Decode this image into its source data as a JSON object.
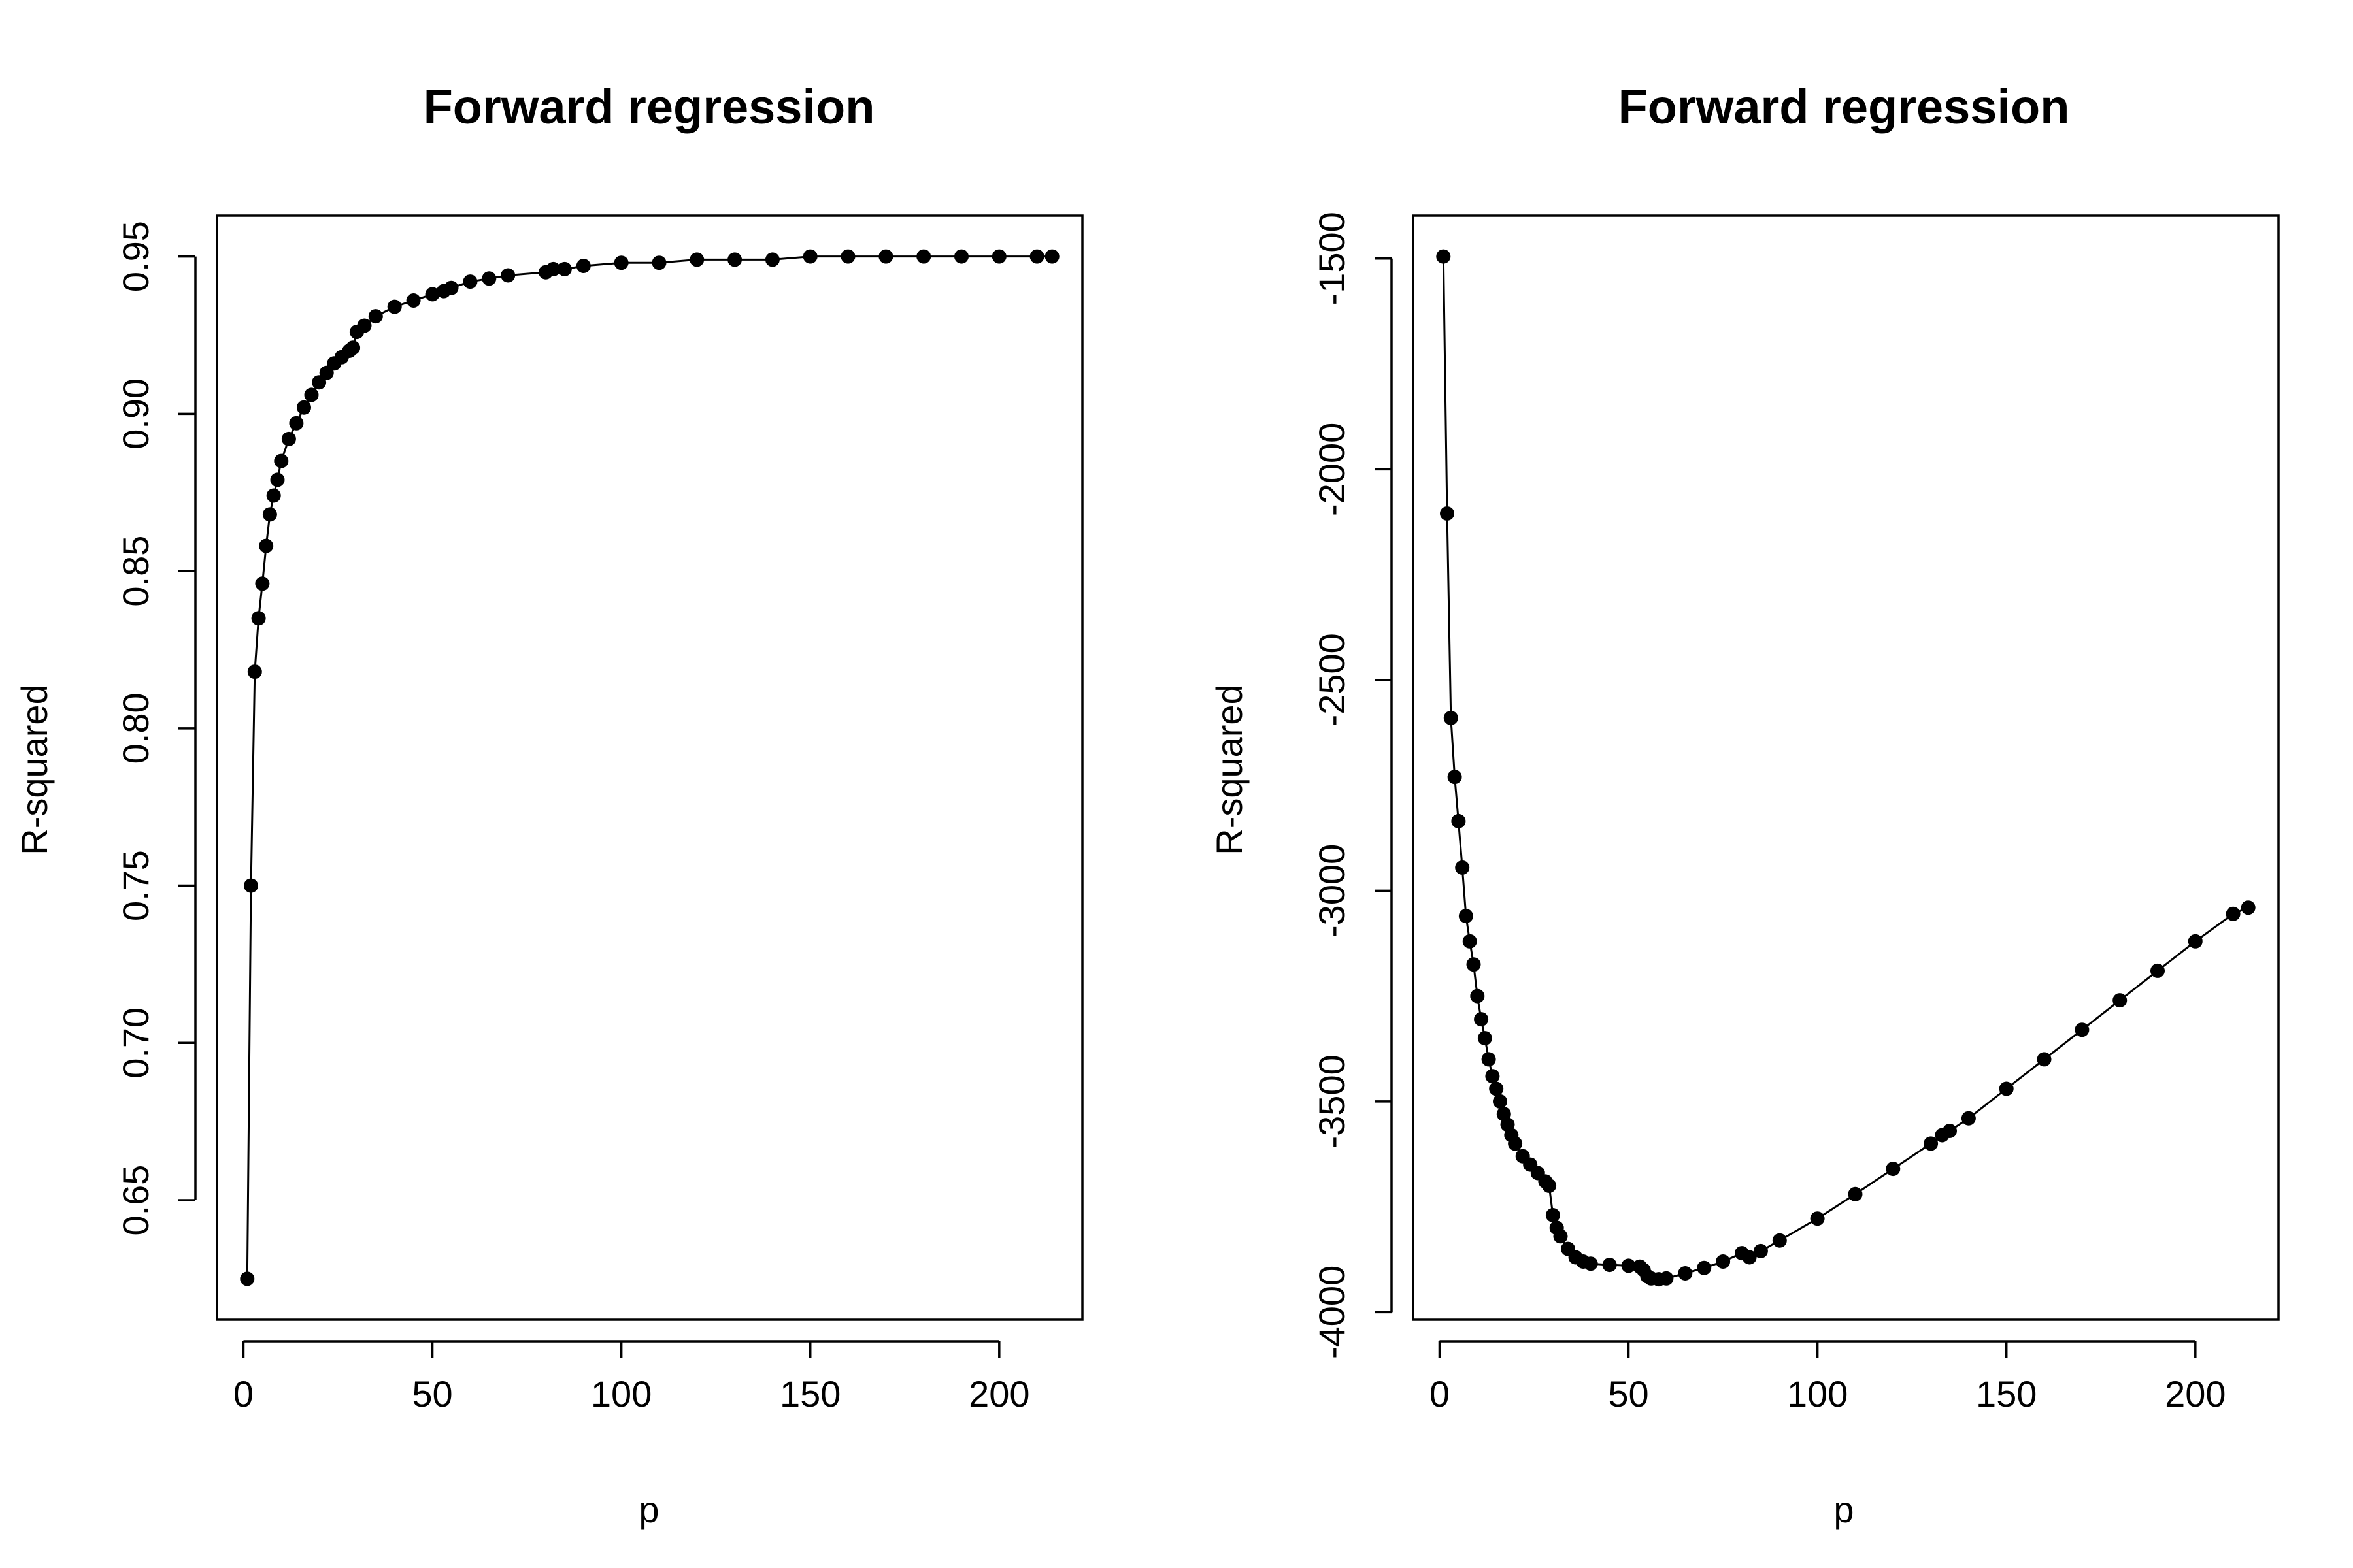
{
  "chart_data": [
    {
      "type": "scatter",
      "title": "Forward regression",
      "xlabel": "p",
      "ylabel": "R-squared",
      "xlim": [
        -7,
        222
      ],
      "ylim": [
        0.612,
        0.963
      ],
      "xticks": [
        0,
        50,
        100,
        150,
        200
      ],
      "yticks": [
        0.65,
        0.7,
        0.75,
        0.8,
        0.85,
        0.9,
        0.95
      ],
      "ytick_labels": [
        "0.65",
        "0.70",
        "0.75",
        "0.80",
        "0.85",
        "0.90",
        "0.95"
      ],
      "grid": false,
      "legend": "none",
      "connected_line": true,
      "series": [
        {
          "x": [
            1,
            2,
            3,
            4,
            5,
            6,
            7,
            8,
            9,
            10,
            12,
            14,
            16,
            18,
            20,
            22,
            24,
            26,
            28,
            29,
            30,
            32,
            35,
            40,
            45,
            50,
            53,
            55,
            60,
            65,
            70,
            80,
            82,
            85,
            90,
            100,
            110,
            120,
            130,
            140,
            150,
            160,
            170,
            180,
            190,
            200,
            210,
            214
          ],
          "y": [
            0.625,
            0.75,
            0.818,
            0.835,
            0.846,
            0.858,
            0.868,
            0.874,
            0.879,
            0.885,
            0.892,
            0.897,
            0.902,
            0.906,
            0.91,
            0.913,
            0.916,
            0.918,
            0.92,
            0.921,
            0.926,
            0.928,
            0.931,
            0.934,
            0.936,
            0.938,
            0.939,
            0.94,
            0.942,
            0.943,
            0.944,
            0.945,
            0.946,
            0.946,
            0.947,
            0.948,
            0.948,
            0.949,
            0.949,
            0.949,
            0.95,
            0.95,
            0.95,
            0.95,
            0.95,
            0.95,
            0.95,
            0.95
          ]
        }
      ]
    },
    {
      "type": "scatter",
      "title": "Forward regression",
      "xlabel": "p",
      "ylabel": "R-squared",
      "xlim": [
        -7,
        222
      ],
      "ylim": [
        -4018,
        -1398
      ],
      "xticks": [
        0,
        50,
        100,
        150,
        200
      ],
      "yticks": [
        -4000,
        -3500,
        -3000,
        -2500,
        -2000,
        -1500
      ],
      "ytick_labels": [
        "-4000",
        "-3500",
        "-3000",
        "-2500",
        "-2000",
        "-1500"
      ],
      "grid": false,
      "legend": "none",
      "connected_line": true,
      "series": [
        {
          "x": [
            1,
            2,
            3,
            4,
            5,
            6,
            7,
            8,
            9,
            10,
            11,
            12,
            13,
            14,
            15,
            16,
            17,
            18,
            19,
            20,
            22,
            24,
            26,
            28,
            29,
            30,
            31,
            32,
            34,
            36,
            38,
            40,
            45,
            50,
            53,
            54,
            55,
            56,
            58,
            60,
            65,
            70,
            75,
            80,
            82,
            85,
            90,
            100,
            110,
            120,
            130,
            133,
            135,
            140,
            150,
            160,
            170,
            180,
            190,
            200,
            210,
            214
          ],
          "y": [
            -1495,
            -2105,
            -2590,
            -2730,
            -2835,
            -2945,
            -3060,
            -3120,
            -3175,
            -3250,
            -3305,
            -3350,
            -3400,
            -3440,
            -3470,
            -3500,
            -3530,
            -3555,
            -3580,
            -3600,
            -3630,
            -3650,
            -3670,
            -3690,
            -3700,
            -3770,
            -3800,
            -3820,
            -3850,
            -3870,
            -3880,
            -3885,
            -3888,
            -3890,
            -3892,
            -3900,
            -3915,
            -3920,
            -3922,
            -3920,
            -3908,
            -3895,
            -3880,
            -3860,
            -3870,
            -3855,
            -3830,
            -3778,
            -3720,
            -3660,
            -3600,
            -3580,
            -3570,
            -3540,
            -3470,
            -3400,
            -3330,
            -3260,
            -3190,
            -3120,
            -3055,
            -3040
          ]
        }
      ]
    }
  ]
}
